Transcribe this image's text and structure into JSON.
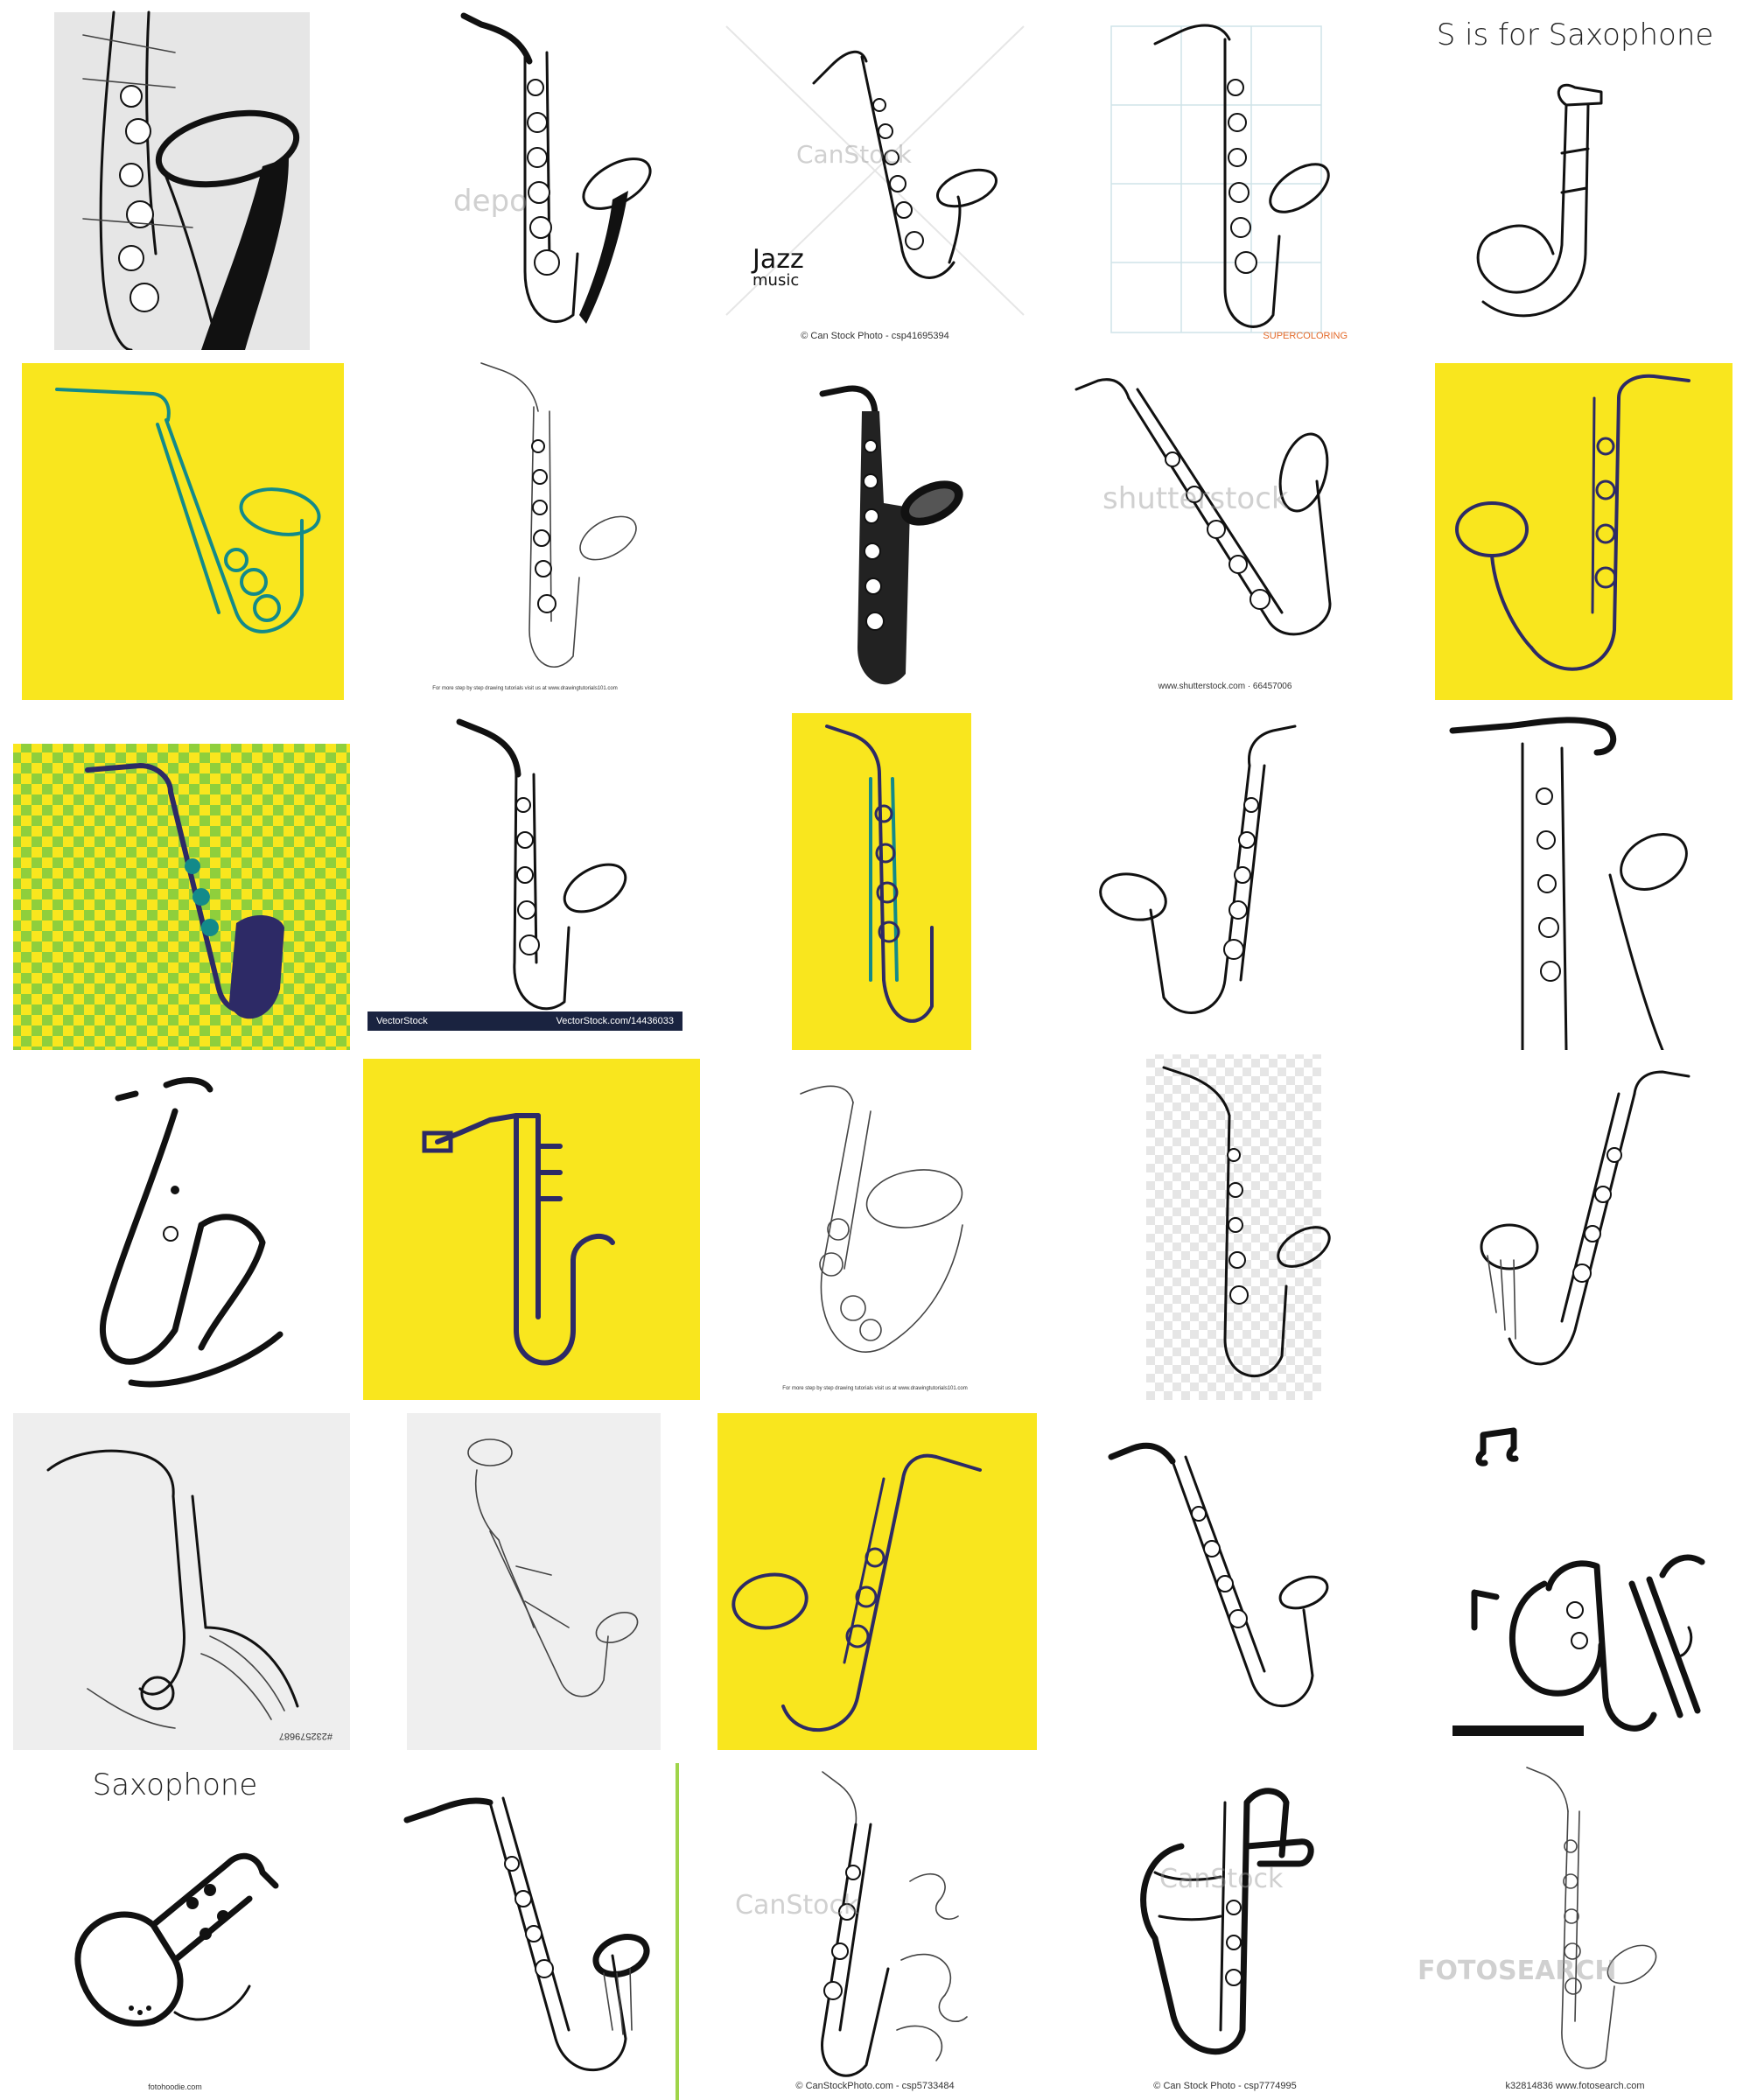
{
  "grid": {
    "rows": 6,
    "cols": 5
  },
  "colors": {
    "yellow": "#f9e61e",
    "navy": "#2d2a66",
    "teal": "#138a8a",
    "ink": "#111111",
    "greyBg": "#e9e9e9",
    "green": "#8fcf3c"
  },
  "cells": {
    "r1c3": {
      "jazz": "Jazz",
      "music": "music",
      "watermark": "CanStock",
      "credit": "© Can Stock Photo - csp41695394"
    },
    "r1c2": {
      "watermark": "depo"
    },
    "r1c4": {
      "credit": "SUPERCOLORING"
    },
    "r1c5": {
      "title": "S is for Saxophone"
    },
    "r2c2": {
      "credit": "For more step by step drawing tutorials visit us at www.drawingtutorials101.com"
    },
    "r2c4": {
      "watermark": "shutterstock",
      "credit": "www.shutterstock.com · 66457006"
    },
    "r3c2": {
      "badge_left": "VectorStock",
      "badge_right": "VectorStock.com/14436033"
    },
    "r4c3": {
      "credit": "For more step by step drawing tutorials visit us at www.drawingtutorials101.com"
    },
    "r5c1": {
      "credit": "#232579687"
    },
    "r6c1": {
      "title": "Saxophone",
      "credit": "fotohoodie.com"
    },
    "r6c3": {
      "watermark": "CanStock",
      "credit": "© CanStockPhoto.com - csp5733484"
    },
    "r6c4": {
      "watermark": "CanStock",
      "credit": "© Can Stock Photo - csp7774995"
    },
    "r6c5": {
      "watermark": "FOTOSEARCH",
      "credit": "k32814836 www.fotosearch.com"
    }
  }
}
